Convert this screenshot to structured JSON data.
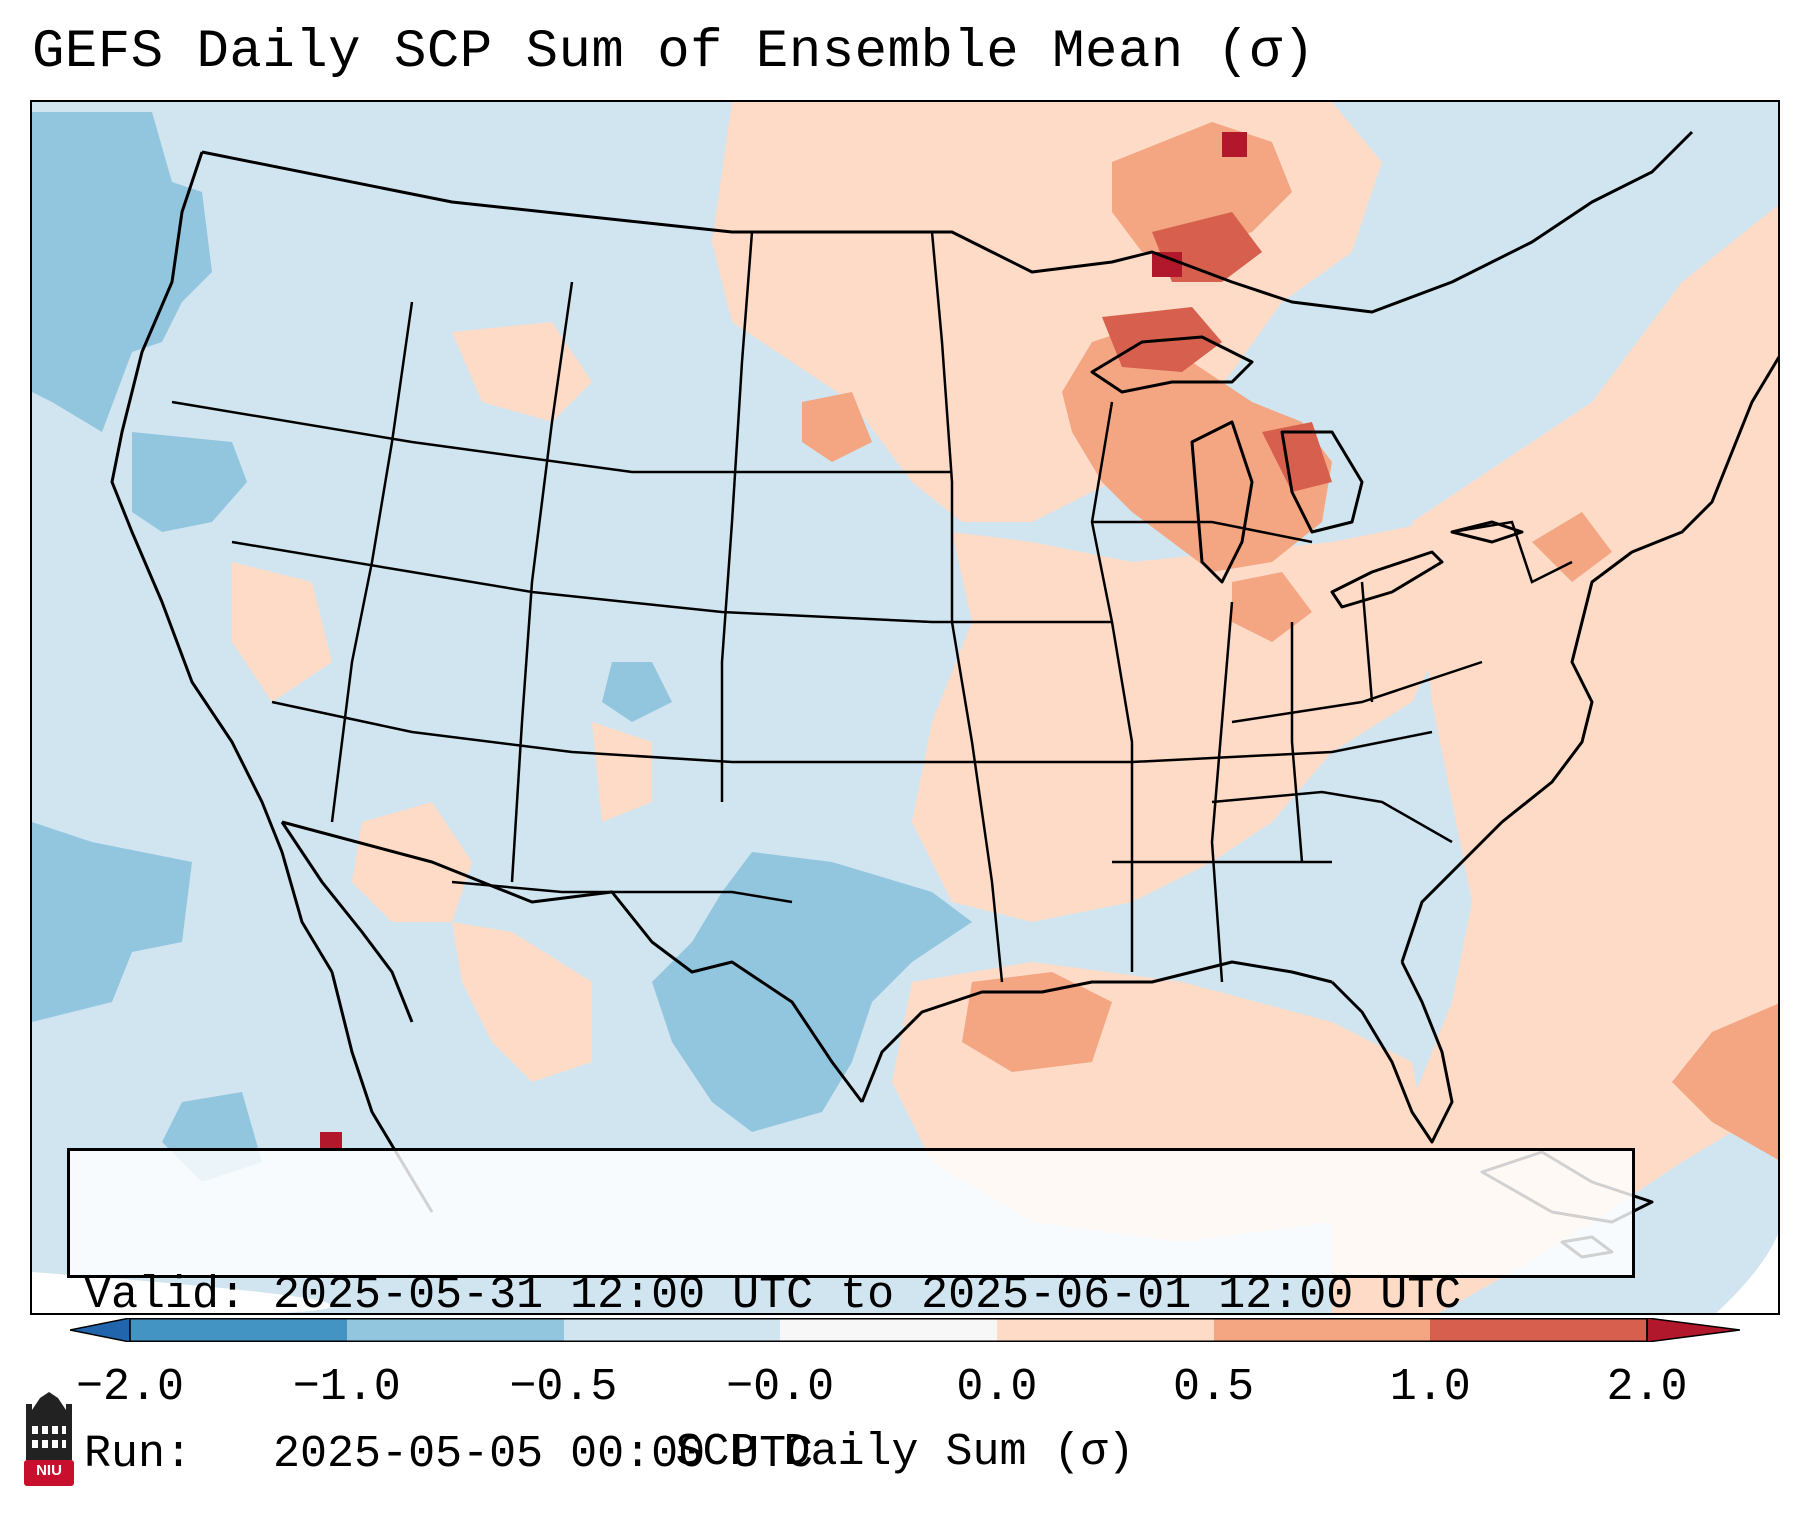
{
  "title": "GEFS Daily SCP Sum of Ensemble Mean (σ)",
  "valid_box": {
    "valid_label": "Valid:",
    "valid_value": "2025-05-31 12:00 UTC to 2025-06-01 12:00 UTC",
    "run_label": "Run:",
    "run_value": "2025-05-05 00:00 UTC"
  },
  "colorbar": {
    "label": "SCP Daily Sum (σ)",
    "ticks": [
      "−2.0",
      "−1.0",
      "−0.5",
      "−0.0",
      "0.0",
      "0.5",
      "1.0",
      "2.0"
    ],
    "bins": [
      {
        "range": "< -2.0",
        "color": "#2166ac"
      },
      {
        "range": "-2.0 to -1.0",
        "color": "#4393c3"
      },
      {
        "range": "-1.0 to -0.5",
        "color": "#92c5de"
      },
      {
        "range": "-0.5 to -0.0",
        "color": "#d1e5f0"
      },
      {
        "range": "-0.0 to 0.0",
        "color": "#f7f7f7"
      },
      {
        "range": "0.0 to 0.5",
        "color": "#fddbc7"
      },
      {
        "range": "0.5 to 1.0",
        "color": "#f4a582"
      },
      {
        "range": "1.0 to 2.0",
        "color": "#d6604d"
      },
      {
        "range": "> 2.0",
        "color": "#b2182b"
      }
    ]
  },
  "map": {
    "projection": "Lambert conformal, CONUS",
    "background_value_color": "#d1e5f0",
    "highlight_regions": [
      {
        "region": "Upper Peninsula of Michigan / Lake Superior",
        "category": "1.0 to 2.0"
      },
      {
        "region": "Lower Michigan",
        "category": "0.5 to 1.0"
      },
      {
        "region": "Central and South Texas",
        "category": "-1.0 to -0.5"
      },
      {
        "region": "Gulf Coast / Southeast / Atlantic",
        "category": "0.0 to 0.5"
      }
    ]
  },
  "logo": {
    "text": "NIU",
    "color": "#c8102e"
  }
}
